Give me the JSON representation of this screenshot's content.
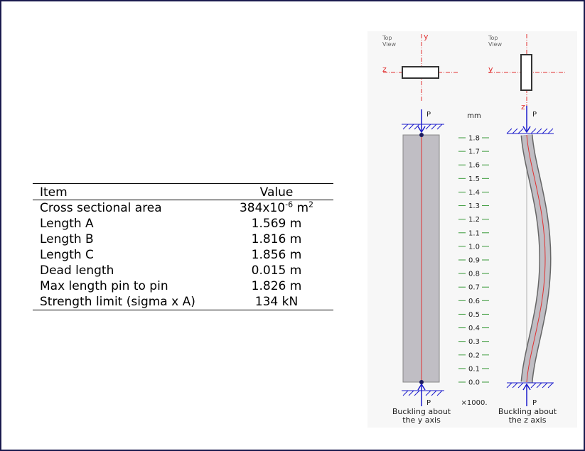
{
  "table": {
    "header": {
      "item": "Item",
      "value": "Value"
    },
    "rows": [
      {
        "item": "Cross sectional area",
        "value_main": "384x10",
        "value_exp": "-6",
        "value_unit": " m",
        "value_unit_exp": "2"
      },
      {
        "item": "Length A",
        "value": "1.569 m"
      },
      {
        "item": "Length B",
        "value": "1.816 m"
      },
      {
        "item": "Length C",
        "value": "1.856 m"
      },
      {
        "item": "Dead length",
        "value": "0.015 m"
      },
      {
        "item": "Max length pin to pin",
        "value": "1.826 m"
      },
      {
        "item": "Strength limit (sigma x A)",
        "value": "134 kN"
      }
    ]
  },
  "diagram": {
    "top_view_label_line1": "Top",
    "top_view_label_line2": "View",
    "axis_y": "y",
    "axis_z": "z",
    "load_label": "P",
    "scale_unit": "mm",
    "scale_multiplier": "×1000.",
    "scale_ticks": [
      "1.8",
      "1.7",
      "1.6",
      "1.5",
      "1.4",
      "1.3",
      "1.2",
      "1.1",
      "1.0",
      "0.9",
      "0.8",
      "0.7",
      "0.6",
      "0.5",
      "0.4",
      "0.3",
      "0.2",
      "0.1",
      "0.0"
    ],
    "caption_left_line1": "Buckling about",
    "caption_left_line2": "the y axis",
    "caption_right_line1": "Buckling about",
    "caption_right_line2": "the z axis",
    "colors": {
      "axis": "#e03030",
      "load": "#1a1acc",
      "scale": "#3a9a3a",
      "column_fill": "#c0bec4",
      "background": "#f7f7f7"
    }
  }
}
